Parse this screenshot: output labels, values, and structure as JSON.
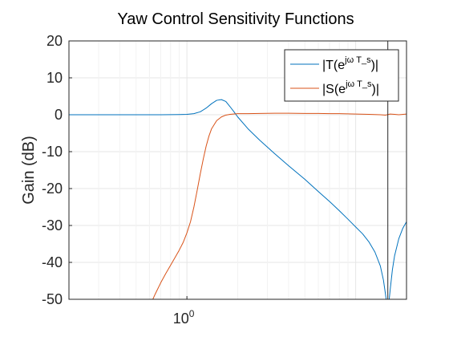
{
  "chart_data": {
    "type": "line",
    "title": "Yaw Control Sensitivity Functions",
    "ylabel": "Gain (dB)",
    "xlabel": "",
    "x_scale": "log",
    "xlim": [
      0.2,
      20
    ],
    "ylim": [
      -50,
      20
    ],
    "grid": true,
    "legend_placement": "top-right",
    "x_ticks": [
      {
        "value": 1,
        "base": "10",
        "exponent": "0"
      }
    ],
    "y_ticks": [
      {
        "value": 20,
        "label": "20"
      },
      {
        "value": 10,
        "label": "10"
      },
      {
        "value": 0,
        "label": "0"
      },
      {
        "value": -10,
        "label": "-10"
      },
      {
        "value": -20,
        "label": "-20"
      },
      {
        "value": -30,
        "label": "-30"
      },
      {
        "value": -40,
        "label": "-40"
      },
      {
        "value": -50,
        "label": "-50"
      }
    ],
    "vline": {
      "x": 15.5,
      "color": "#262626"
    },
    "series": [
      {
        "legend_main": "|T(e",
        "legend_sup": "jω T_s",
        "legend_tail": ")|",
        "color": "#0072BD",
        "x": [
          0.2,
          0.3,
          0.5,
          0.7,
          0.9,
          1.0,
          1.1,
          1.2,
          1.3,
          1.4,
          1.5,
          1.6,
          1.7,
          1.8,
          1.9,
          2.0,
          2.3,
          2.7,
          3.3,
          4.0,
          5.0,
          6.0,
          7.0,
          8.0,
          9.0,
          10.0,
          11.0,
          12.0,
          13.0,
          14.0,
          14.6,
          15.0,
          15.4,
          15.6,
          16.0,
          16.5,
          17.0,
          18.0,
          19.0,
          20.0
        ],
        "y": [
          0,
          0,
          0,
          0,
          0.05,
          0.1,
          0.3,
          0.8,
          1.8,
          3.0,
          3.9,
          4.1,
          3.6,
          2.2,
          0.8,
          -0.6,
          -3.8,
          -6.9,
          -10.5,
          -13.8,
          -17.5,
          -20.8,
          -23.5,
          -26.0,
          -28.3,
          -30.4,
          -32.3,
          -34.5,
          -37.2,
          -41.0,
          -44.8,
          -48.5,
          -52.5,
          -52.5,
          -47.5,
          -42.0,
          -38.2,
          -33.6,
          -30.8,
          -29.0
        ]
      },
      {
        "legend_main": "|S(e",
        "legend_sup": "jω T_s",
        "legend_tail": ")|",
        "color": "#D95319",
        "x": [
          0.6,
          0.65,
          0.7,
          0.75,
          0.8,
          0.85,
          0.9,
          0.95,
          1.0,
          1.05,
          1.1,
          1.15,
          1.2,
          1.25,
          1.3,
          1.35,
          1.4,
          1.5,
          1.6,
          1.7,
          1.8,
          2.0,
          2.3,
          2.7,
          3.3,
          4.0,
          5.0,
          6.0,
          7.0,
          8.0,
          9.0,
          10.0,
          12.0,
          14.0,
          15.0,
          16.0,
          17.0,
          18.0,
          20.0
        ],
        "y": [
          -52.0,
          -48.5,
          -45.5,
          -43.0,
          -40.8,
          -38.7,
          -36.7,
          -34.6,
          -32.0,
          -29.0,
          -25.0,
          -20.5,
          -16.0,
          -12.0,
          -8.5,
          -5.8,
          -3.8,
          -1.6,
          -0.6,
          -0.1,
          0.1,
          0.3,
          0.3,
          0.35,
          0.4,
          0.4,
          0.35,
          0.35,
          0.3,
          0.3,
          0.25,
          0.2,
          0.1,
          0.0,
          -0.1,
          0.2,
          0.1,
          0.0,
          0.2
        ]
      }
    ]
  }
}
